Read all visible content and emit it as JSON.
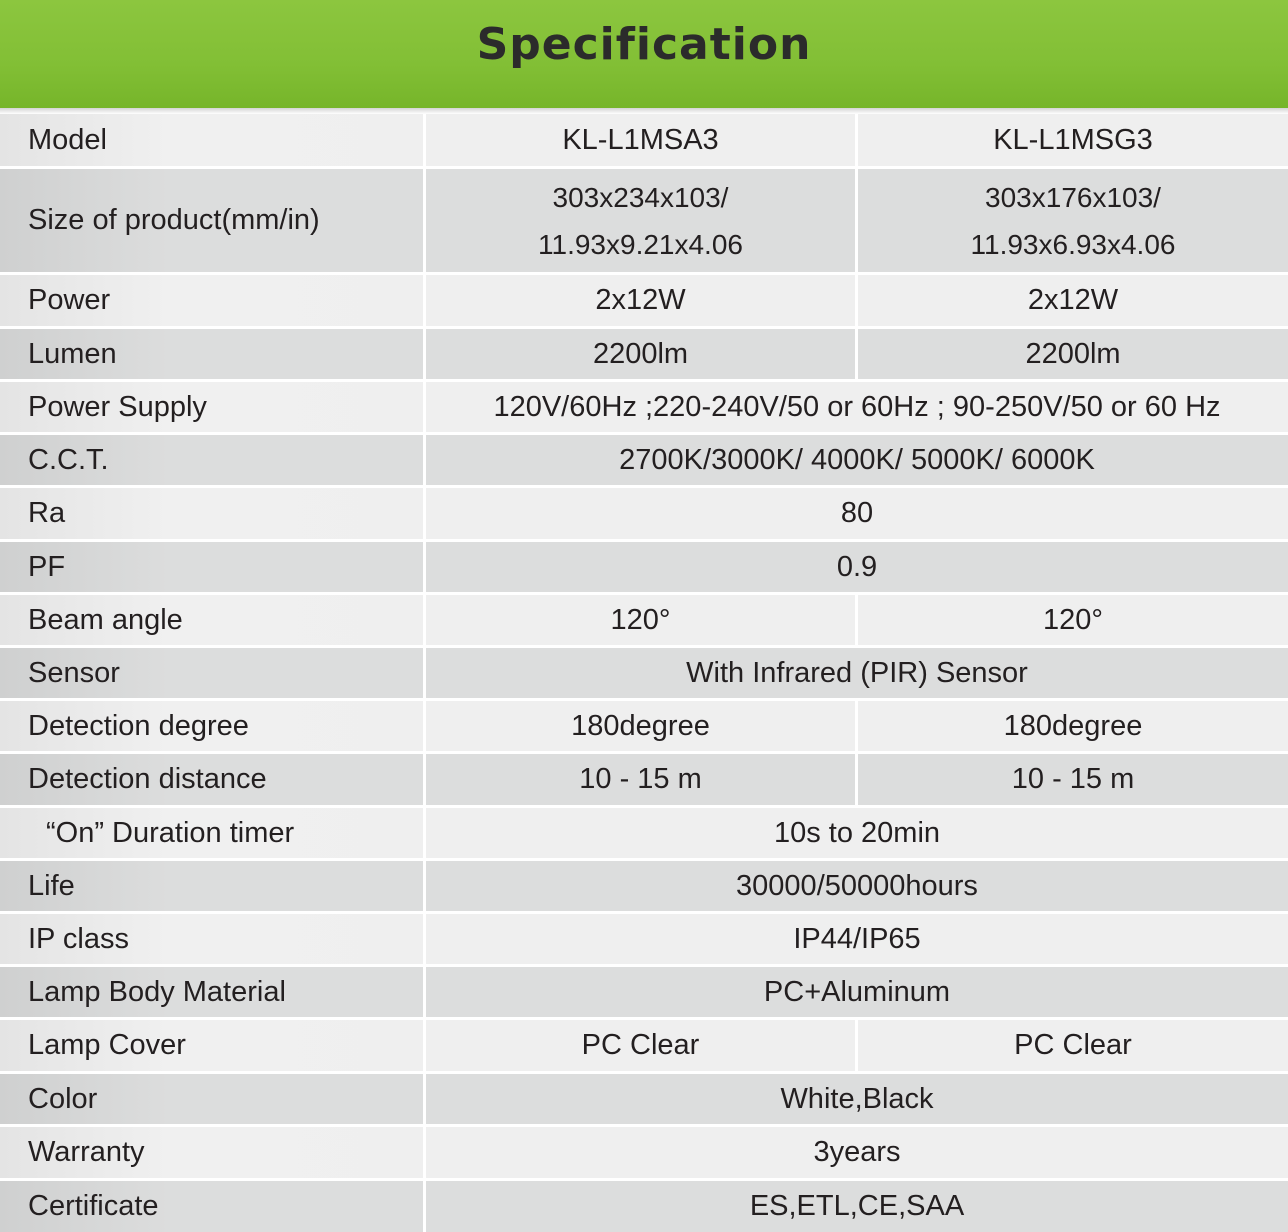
{
  "header": {
    "title": "Specification"
  },
  "rows": [
    {
      "label": "Model",
      "v1": "KL-L1MSA3",
      "v2": "KL-L1MSG3"
    },
    {
      "label": "Size of product(mm/in)",
      "v1a": "303x234x103/",
      "v1b": "11.93x9.21x4.06",
      "v2a": "303x176x103/",
      "v2b": "11.93x6.93x4.06"
    },
    {
      "label": "Power",
      "v1": "2x12W",
      "v2": "2x12W"
    },
    {
      "label": "Lumen",
      "v1": "2200lm",
      "v2": "2200lm"
    },
    {
      "label": "Power Supply",
      "v": "120V/60Hz ;220-240V/50 or 60Hz ; 90-250V/50 or 60 Hz"
    },
    {
      "label": "C.C.T.",
      "v": "2700K/3000K/ 4000K/ 5000K/ 6000K"
    },
    {
      "label": "Ra",
      "v": "80"
    },
    {
      "label": "PF",
      "v": "0.9"
    },
    {
      "label": "Beam angle",
      "v1": "120°",
      "v2": "120°"
    },
    {
      "label": "Sensor",
      "v": "With Infrared (PIR) Sensor"
    },
    {
      "label": "Detection degree",
      "v1": "180degree",
      "v2": "180degree"
    },
    {
      "label": "Detection distance",
      "v1": "10 - 15 m",
      "v2": "10 - 15 m"
    },
    {
      "label": "“On” Duration timer",
      "v": "10s to 20min"
    },
    {
      "label": "Life",
      "v": "30000/50000hours"
    },
    {
      "label": "IP class",
      "v": "IP44/IP65"
    },
    {
      "label": "Lamp Body Material",
      "v": "PC+Aluminum"
    },
    {
      "label": "Lamp Cover",
      "v1": "PC Clear",
      "v2": "PC Clear"
    },
    {
      "label": "Color",
      "v": "White,Black"
    },
    {
      "label": "Warranty",
      "v": "3years"
    },
    {
      "label": "Certificate",
      "v": "ES,ETL,CE,SAA"
    }
  ]
}
